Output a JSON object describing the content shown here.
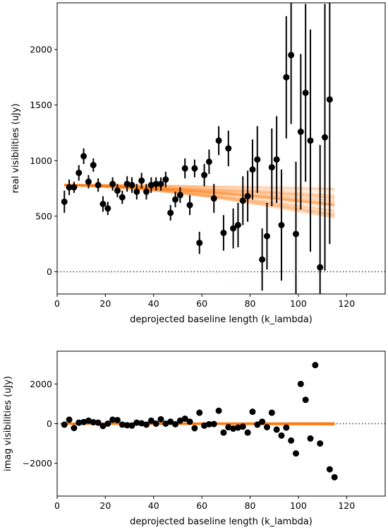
{
  "chart_data": [
    {
      "type": "scatter",
      "xlabel": "deprojected baseline length (k_lambda)",
      "ylabel": "real visibilities (uJy)",
      "xlim": [
        0,
        136
      ],
      "ylim": [
        -200,
        2420
      ],
      "xticks": [
        0,
        20,
        40,
        60,
        80,
        100,
        120
      ],
      "yticks": [
        0,
        500,
        1000,
        1500,
        2000
      ],
      "zero_line": {
        "y": 0,
        "style": "dotted",
        "color": "#1f4f3f"
      },
      "data_color": "#000000",
      "model_color": "#ff7f0e",
      "model_band": {
        "x_start": 3,
        "x_end": 115,
        "y_start": 780,
        "y_end_max": 760,
        "y_end_min": 470,
        "n_draws": 40
      },
      "series": [
        {
          "x": [
            3,
            5,
            7,
            9,
            11,
            13,
            15,
            17,
            19,
            21,
            23,
            25,
            27,
            29,
            31,
            33,
            35,
            37,
            39,
            41,
            43,
            45,
            47,
            49,
            51,
            53,
            55,
            57,
            59,
            61,
            63,
            65,
            67,
            69,
            71,
            73,
            75,
            77,
            79,
            81,
            83,
            85,
            87,
            89,
            91,
            93,
            95,
            97,
            99,
            101,
            103,
            105,
            109,
            111,
            113
          ],
          "y": [
            630,
            760,
            760,
            890,
            1040,
            810,
            960,
            780,
            610,
            570,
            790,
            730,
            670,
            790,
            780,
            720,
            820,
            720,
            780,
            790,
            790,
            830,
            530,
            650,
            690,
            930,
            600,
            930,
            260,
            870,
            990,
            660,
            1180,
            350,
            1110,
            390,
            420,
            640,
            680,
            920,
            1010,
            110,
            320,
            940,
            1010,
            420,
            1750,
            1950,
            340,
            1260,
            1610,
            1180,
            40,
            1210,
            1550
          ],
          "err": [
            100,
            70,
            50,
            70,
            70,
            60,
            60,
            60,
            70,
            60,
            60,
            60,
            60,
            70,
            70,
            70,
            70,
            70,
            70,
            60,
            60,
            70,
            70,
            70,
            70,
            90,
            90,
            80,
            100,
            100,
            110,
            130,
            130,
            160,
            160,
            180,
            200,
            220,
            230,
            270,
            300,
            280,
            300,
            350,
            390,
            500,
            550,
            620,
            650,
            700,
            800,
            1000,
            1100,
            1200,
            1300
          ]
        }
      ]
    },
    {
      "type": "scatter",
      "xlabel": "deprojected baseline length (k_lambda)",
      "ylabel": "imag visibilities (uJy)",
      "xlim": [
        0,
        136
      ],
      "ylim": [
        -3650,
        3650
      ],
      "xticks": [
        0,
        20,
        40,
        60,
        80,
        100,
        120
      ],
      "yticks": [
        -2000,
        0,
        2000
      ],
      "zero_line": {
        "y": 0,
        "style": "dotted",
        "color": "#1f4f3f"
      },
      "data_color": "#000000",
      "model_color": "#ff7f0e",
      "model_band": {
        "x_start": 3,
        "x_end": 115,
        "y_start": 0,
        "y_end_max": 40,
        "y_end_min": -40,
        "n_draws": 40
      },
      "series": [
        {
          "x": [
            3,
            5,
            7,
            9,
            11,
            13,
            15,
            17,
            19,
            21,
            23,
            25,
            27,
            29,
            31,
            33,
            35,
            37,
            39,
            41,
            43,
            45,
            47,
            49,
            51,
            53,
            55,
            57,
            59,
            61,
            63,
            65,
            67,
            69,
            71,
            73,
            75,
            77,
            79,
            81,
            83,
            85,
            87,
            89,
            91,
            93,
            95,
            97,
            99,
            101,
            103,
            105,
            107,
            109,
            113,
            115
          ],
          "y": [
            -50,
            200,
            -220,
            50,
            80,
            150,
            70,
            50,
            -120,
            0,
            200,
            180,
            -50,
            -80,
            -100,
            50,
            20,
            -50,
            150,
            0,
            220,
            0,
            100,
            -30,
            150,
            250,
            100,
            -230,
            550,
            -100,
            -30,
            -20,
            650,
            -450,
            -180,
            -250,
            -200,
            -150,
            -450,
            600,
            -50,
            100,
            -180,
            550,
            -300,
            -600,
            -200,
            -850,
            -1500,
            2000,
            1200,
            -750,
            2950,
            -1000,
            -2300,
            -2700
          ]
        }
      ]
    }
  ]
}
